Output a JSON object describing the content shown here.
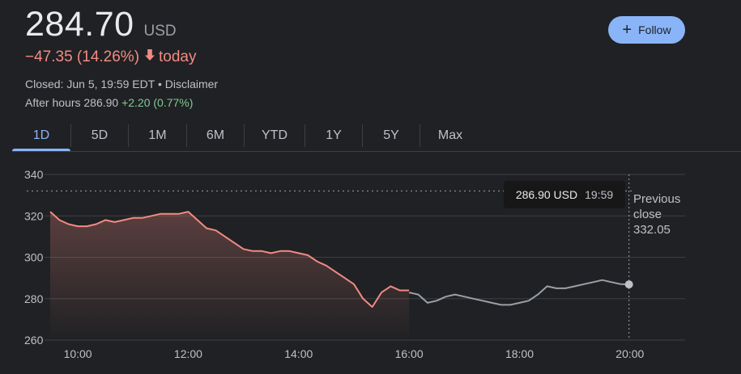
{
  "quote": {
    "price": "284.70",
    "currency": "USD",
    "change_text": "−47.35 (14.26%)",
    "change_period": "today",
    "closed_line": "Closed: Jun 5, 19:59 EDT • Disclaimer",
    "after_hours_label": "After hours 286.90",
    "after_hours_change": "+2.20 (0.77%)",
    "negative_color": "#f28b82",
    "positive_color": "#81c995"
  },
  "follow_button": {
    "label": "Follow",
    "icon": "plus-icon"
  },
  "tabs": [
    {
      "label": "1D",
      "active": true
    },
    {
      "label": "5D",
      "active": false
    },
    {
      "label": "1M",
      "active": false
    },
    {
      "label": "6M",
      "active": false
    },
    {
      "label": "YTD",
      "active": false
    },
    {
      "label": "1Y",
      "active": false
    },
    {
      "label": "5Y",
      "active": false
    },
    {
      "label": "Max",
      "active": false
    }
  ],
  "tooltip": {
    "value": "286.90 USD",
    "time": "19:59"
  },
  "previous_close": {
    "label_line1": "Previous",
    "label_line2": "close",
    "value": "332.05"
  },
  "chart_data": {
    "type": "line",
    "title": "",
    "xlabel": "",
    "ylabel": "",
    "ylim": [
      260,
      340
    ],
    "xlim": [
      "09:30",
      "21:00"
    ],
    "yticks": [
      "340",
      "320",
      "300",
      "280",
      "260"
    ],
    "xticks": [
      "10:00",
      "12:00",
      "14:00",
      "16:00",
      "18:00",
      "20:00"
    ],
    "grid": true,
    "previous_close": 332.05,
    "series": [
      {
        "session": "regular",
        "color": "#f28b82",
        "x": [
          "09:30",
          "09:40",
          "09:50",
          "10:00",
          "10:10",
          "10:20",
          "10:30",
          "10:40",
          "10:50",
          "11:00",
          "11:10",
          "11:20",
          "11:30",
          "11:40",
          "11:50",
          "12:00",
          "12:10",
          "12:20",
          "12:30",
          "12:40",
          "12:50",
          "13:00",
          "13:10",
          "13:20",
          "13:30",
          "13:40",
          "13:50",
          "14:00",
          "14:10",
          "14:20",
          "14:30",
          "14:40",
          "14:50",
          "15:00",
          "15:10",
          "15:20",
          "15:30",
          "15:40",
          "15:50",
          "16:00"
        ],
        "y": [
          322,
          318,
          316,
          315,
          315,
          316,
          318,
          317,
          318,
          319,
          319,
          320,
          321,
          321,
          321,
          322,
          318,
          314,
          313,
          310,
          307,
          304,
          303,
          303,
          302,
          303,
          303,
          302,
          301,
          298,
          296,
          293,
          290,
          287,
          280,
          276,
          283,
          286,
          284,
          284
        ]
      },
      {
        "session": "after-hours",
        "color": "#9aa0a6",
        "x": [
          "16:00",
          "16:10",
          "16:20",
          "16:30",
          "16:40",
          "16:50",
          "17:00",
          "17:10",
          "17:20",
          "17:30",
          "17:40",
          "17:50",
          "18:00",
          "18:10",
          "18:20",
          "18:30",
          "18:40",
          "18:50",
          "19:00",
          "19:10",
          "19:20",
          "19:30",
          "19:40",
          "19:50",
          "19:59"
        ],
        "y": [
          283,
          282,
          278,
          279,
          281,
          282,
          281,
          280,
          279,
          278,
          277,
          277,
          278,
          279,
          282,
          286,
          285,
          285,
          286,
          287,
          288,
          289,
          288,
          287,
          286.9
        ]
      }
    ]
  }
}
